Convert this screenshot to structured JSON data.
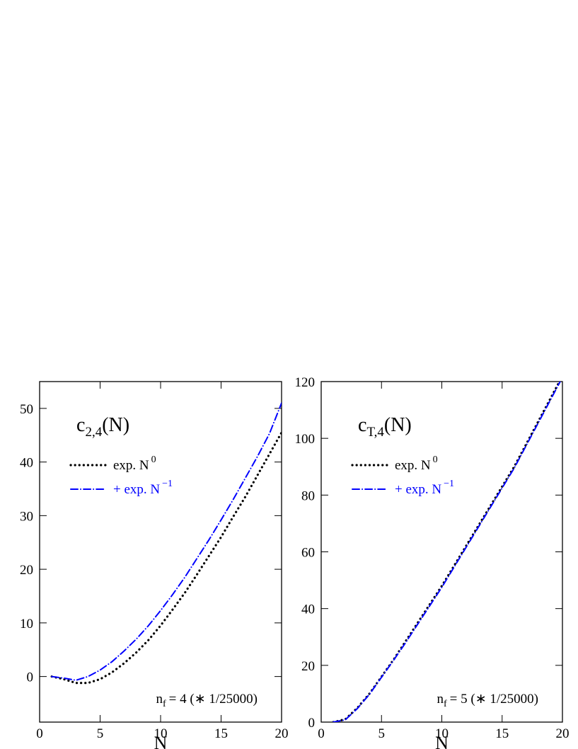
{
  "chart_data": [
    {
      "type": "line",
      "title_base": "c",
      "title_sub": "2,4",
      "title_end": "(N)",
      "x_label": "N",
      "annotation_base": "n",
      "annotation_sub": "f",
      "annotation_end": "= 4 (∗ 1/25000)",
      "xlim": [
        0,
        20
      ],
      "xticks": [
        0,
        5,
        10,
        15,
        20
      ],
      "ylim": [
        -8.5,
        55
      ],
      "yticks": [
        0,
        10,
        20,
        30,
        40,
        50
      ],
      "x": [
        1,
        2,
        3,
        4,
        5,
        6,
        7,
        8,
        9,
        10,
        11,
        12,
        13,
        14,
        15,
        16,
        17,
        18,
        19,
        20
      ],
      "series": [
        {
          "name": "exp. N",
          "name_sup": "0",
          "color": "#000000",
          "style": "dotted",
          "values": [
            0,
            -0.5,
            -1.2,
            -1.2,
            -0.5,
            0.8,
            2.5,
            4.5,
            6.8,
            9.5,
            12.5,
            15.6,
            19,
            22.5,
            26,
            29.8,
            33.5,
            37.5,
            41.5,
            45.5
          ]
        },
        {
          "name": "+ exp. N",
          "name_sup": "−1",
          "color": "#0000ff",
          "style": "dashdot",
          "values": [
            0,
            -0.3,
            -0.7,
            0,
            1.2,
            2.8,
            4.8,
            7,
            9.5,
            12.3,
            15.3,
            18.5,
            22,
            25.5,
            29.2,
            33,
            37,
            41,
            45.3,
            51
          ]
        }
      ]
    },
    {
      "type": "line",
      "title_base": "c",
      "title_sub": "T,4",
      "title_end": "(N)",
      "x_label": "N",
      "annotation_base": "n",
      "annotation_sub": "f",
      "annotation_end": "= 5  (∗ 1/25000)",
      "xlim": [
        0,
        20
      ],
      "xticks": [
        0,
        5,
        10,
        15,
        20
      ],
      "ylim": [
        0,
        120
      ],
      "yticks": [
        0,
        20,
        40,
        60,
        80,
        100,
        120
      ],
      "x": [
        1,
        2,
        3,
        4,
        5,
        6,
        7,
        8,
        9,
        10,
        11,
        12,
        13,
        14,
        15,
        16,
        17,
        18,
        19,
        20
      ],
      "series": [
        {
          "name": "exp. N",
          "name_sup": "0",
          "color": "#000000",
          "style": "dotted",
          "values": [
            0,
            1,
            5,
            10,
            16,
            22,
            28.5,
            35,
            41.5,
            48,
            55,
            62,
            69,
            76,
            83,
            90,
            98,
            106,
            114,
            122
          ]
        },
        {
          "name": "+ exp. N",
          "name_sup": "−1",
          "color": "#0000ff",
          "style": "dashdot",
          "values": [
            0,
            0.8,
            4.8,
            9.8,
            15.8,
            21.8,
            28,
            34.5,
            41,
            47.5,
            54.5,
            61.5,
            68.5,
            75.5,
            82.5,
            89.5,
            97.5,
            105.5,
            113.5,
            121.5
          ]
        }
      ]
    }
  ]
}
